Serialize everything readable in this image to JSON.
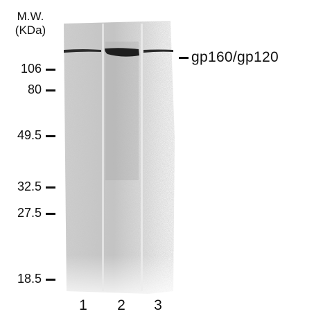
{
  "header": {
    "line1": "M.W.",
    "line2": "(KDa)"
  },
  "markers": [
    {
      "label": "106",
      "kda": 106
    },
    {
      "label": "80",
      "kda": 80
    },
    {
      "label": "49.5",
      "kda": 49.5
    },
    {
      "label": "32.5",
      "kda": 32.5
    },
    {
      "label": "27.5",
      "kda": 27.5
    },
    {
      "label": "18.5",
      "kda": 18.5
    }
  ],
  "band_label": "gp160/gp120",
  "lanes": [
    {
      "number": "1"
    },
    {
      "number": "2"
    },
    {
      "number": "3"
    }
  ],
  "colors": {
    "ink": "#111111",
    "gel_background": "#cfcfcf",
    "band": "#2b2b2b"
  }
}
